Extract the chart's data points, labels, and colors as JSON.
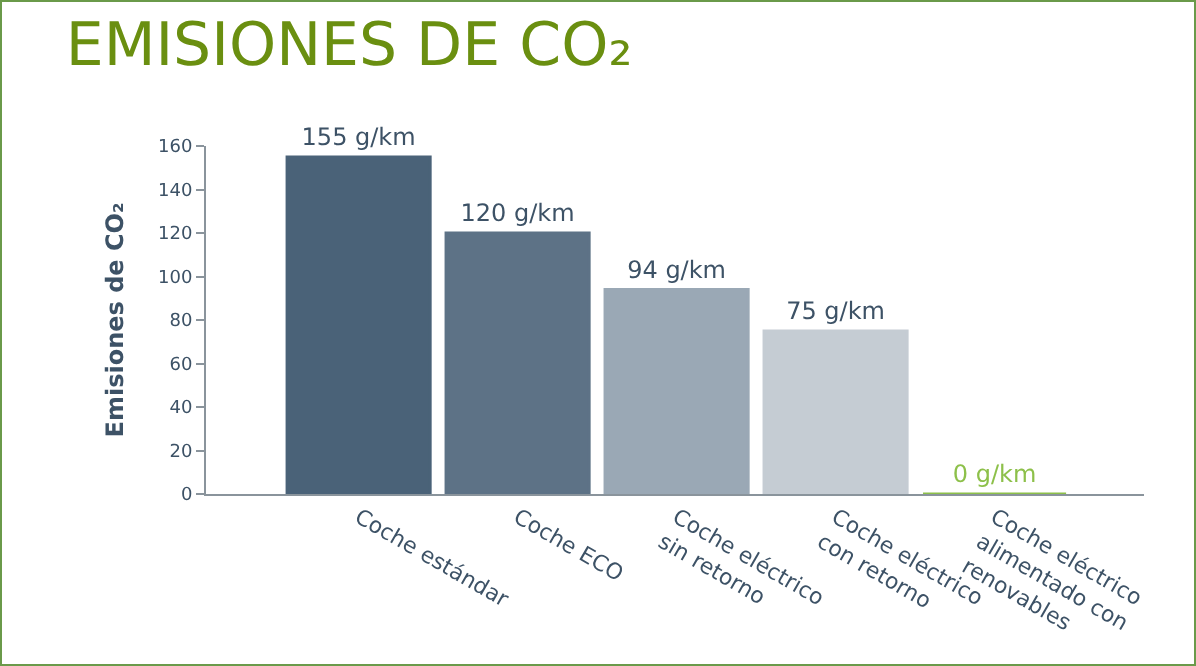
{
  "chart_data": {
    "type": "bar",
    "title": "EMISIONES DE CO₂",
    "ylabel": "Emisiones de CO₂",
    "categories": [
      "Coche estándar",
      "Coche ECO",
      "Coche eléctrico sin retorno",
      "Coche eléctrico con retorno",
      "Coche eléctrico alimentado con renovables"
    ],
    "values": [
      155,
      120,
      94,
      75,
      0
    ],
    "colors": [
      "#4a6278",
      "#5d7286",
      "#9aa8b5",
      "#c5ccd3",
      "#8dc04a"
    ],
    "value_labels": [
      "155 g/km",
      "120 g/km",
      "94 g/km",
      "75 g/km",
      "0 g/km"
    ],
    "ylim": [
      0,
      160
    ],
    "yticks": [
      0,
      20,
      40,
      60,
      80,
      100,
      120,
      140,
      160
    ],
    "grid": false,
    "legend": false
  }
}
